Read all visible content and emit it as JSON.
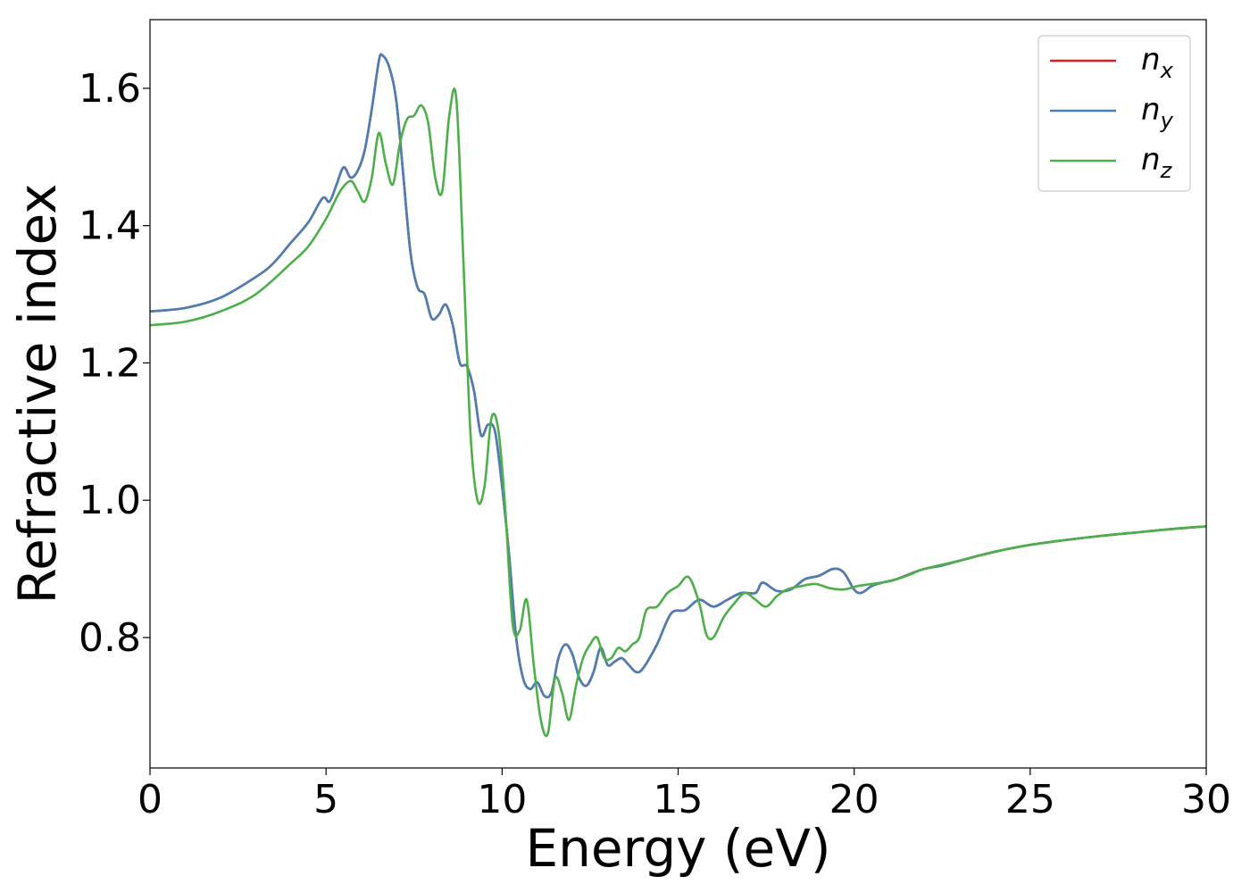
{
  "chart_data": {
    "type": "line",
    "title": "",
    "xlabel": "Energy (eV)",
    "ylabel": "Refractive index",
    "xlim": [
      0,
      30
    ],
    "ylim": [
      0.61,
      1.7
    ],
    "xticks": [
      0,
      5,
      10,
      15,
      20,
      25,
      30
    ],
    "yticks": [
      0.8,
      1.0,
      1.2,
      1.4,
      1.6
    ],
    "xtick_labels": [
      "0",
      "5",
      "10",
      "15",
      "20",
      "25",
      "30"
    ],
    "ytick_labels": [
      "0.8",
      "1.0",
      "1.2",
      "1.4",
      "1.6"
    ],
    "grid": false,
    "legend_position": "top-right",
    "series": [
      {
        "name": "n_x",
        "legend_main": "n",
        "legend_sub": "x",
        "color": "#e41a1c",
        "x": [
          0,
          1,
          2,
          3,
          3.5,
          4,
          4.5,
          4.9,
          5.1,
          5.3,
          5.5,
          5.7,
          5.9,
          6.1,
          6.3,
          6.5,
          6.6,
          6.8,
          7.0,
          7.2,
          7.4,
          7.6,
          7.8,
          8.0,
          8.2,
          8.4,
          8.6,
          8.8,
          9.0,
          9.2,
          9.4,
          9.6,
          9.8,
          10.0,
          10.2,
          10.4,
          10.6,
          10.8,
          11.0,
          11.2,
          11.4,
          11.6,
          11.8,
          12.0,
          12.2,
          12.4,
          12.6,
          12.8,
          13.0,
          13.2,
          13.4,
          13.6,
          13.8,
          14.0,
          14.4,
          14.8,
          15.2,
          15.6,
          16.0,
          16.4,
          16.8,
          17.2,
          17.4,
          17.8,
          18.2,
          18.6,
          19.0,
          19.4,
          19.7,
          20.0,
          20.2,
          20.5,
          20.8,
          21.2,
          21.6,
          22.0,
          22.5,
          23,
          24,
          25,
          26,
          27,
          28,
          29,
          30
        ],
        "y": [
          1.275,
          1.28,
          1.295,
          1.325,
          1.345,
          1.375,
          1.405,
          1.44,
          1.435,
          1.46,
          1.485,
          1.47,
          1.48,
          1.51,
          1.57,
          1.64,
          1.648,
          1.63,
          1.58,
          1.47,
          1.36,
          1.31,
          1.3,
          1.265,
          1.27,
          1.285,
          1.255,
          1.2,
          1.195,
          1.16,
          1.095,
          1.11,
          1.1,
          1.02,
          0.92,
          0.8,
          0.74,
          0.725,
          0.735,
          0.715,
          0.72,
          0.77,
          0.79,
          0.775,
          0.74,
          0.73,
          0.75,
          0.785,
          0.76,
          0.765,
          0.77,
          0.76,
          0.75,
          0.755,
          0.79,
          0.835,
          0.84,
          0.855,
          0.845,
          0.855,
          0.865,
          0.865,
          0.88,
          0.868,
          0.87,
          0.885,
          0.89,
          0.9,
          0.895,
          0.87,
          0.865,
          0.875,
          0.88,
          0.885,
          0.893,
          0.9,
          0.905,
          0.912,
          0.925,
          0.935,
          0.942,
          0.948,
          0.953,
          0.958,
          0.962
        ]
      },
      {
        "name": "n_y",
        "legend_main": "n",
        "legend_sub": "y",
        "color": "#4a7fb5",
        "x": [
          0,
          1,
          2,
          3,
          3.5,
          4,
          4.5,
          4.9,
          5.1,
          5.3,
          5.5,
          5.7,
          5.9,
          6.1,
          6.3,
          6.5,
          6.6,
          6.8,
          7.0,
          7.2,
          7.4,
          7.6,
          7.8,
          8.0,
          8.2,
          8.4,
          8.6,
          8.8,
          9.0,
          9.2,
          9.4,
          9.6,
          9.8,
          10.0,
          10.2,
          10.4,
          10.6,
          10.8,
          11.0,
          11.2,
          11.4,
          11.6,
          11.8,
          12.0,
          12.2,
          12.4,
          12.6,
          12.8,
          13.0,
          13.2,
          13.4,
          13.6,
          13.8,
          14.0,
          14.4,
          14.8,
          15.2,
          15.6,
          16.0,
          16.4,
          16.8,
          17.2,
          17.4,
          17.8,
          18.2,
          18.6,
          19.0,
          19.4,
          19.7,
          20.0,
          20.2,
          20.5,
          20.8,
          21.2,
          21.6,
          22.0,
          22.5,
          23,
          24,
          25,
          26,
          27,
          28,
          29,
          30
        ],
        "y": [
          1.275,
          1.28,
          1.295,
          1.325,
          1.345,
          1.375,
          1.405,
          1.44,
          1.435,
          1.46,
          1.485,
          1.47,
          1.48,
          1.51,
          1.57,
          1.64,
          1.648,
          1.63,
          1.58,
          1.47,
          1.36,
          1.31,
          1.3,
          1.265,
          1.27,
          1.285,
          1.255,
          1.2,
          1.195,
          1.16,
          1.095,
          1.11,
          1.1,
          1.02,
          0.92,
          0.8,
          0.74,
          0.725,
          0.735,
          0.715,
          0.72,
          0.77,
          0.79,
          0.775,
          0.74,
          0.73,
          0.75,
          0.785,
          0.76,
          0.765,
          0.77,
          0.76,
          0.75,
          0.755,
          0.79,
          0.835,
          0.84,
          0.855,
          0.845,
          0.855,
          0.865,
          0.865,
          0.88,
          0.868,
          0.87,
          0.885,
          0.89,
          0.9,
          0.895,
          0.87,
          0.865,
          0.875,
          0.88,
          0.885,
          0.893,
          0.9,
          0.905,
          0.912,
          0.925,
          0.935,
          0.942,
          0.948,
          0.953,
          0.958,
          0.962
        ]
      },
      {
        "name": "n_z",
        "legend_main": "n",
        "legend_sub": "z",
        "color": "#4daf4a",
        "x": [
          0,
          1,
          2,
          3,
          4,
          4.5,
          5.0,
          5.4,
          5.7,
          5.9,
          6.1,
          6.3,
          6.5,
          6.7,
          6.9,
          7.1,
          7.3,
          7.5,
          7.7,
          7.9,
          8.1,
          8.3,
          8.5,
          8.7,
          8.9,
          9.1,
          9.3,
          9.5,
          9.7,
          9.9,
          10.1,
          10.3,
          10.5,
          10.7,
          10.9,
          11.1,
          11.3,
          11.5,
          11.7,
          11.9,
          12.1,
          12.3,
          12.5,
          12.7,
          12.9,
          13.1,
          13.3,
          13.5,
          13.7,
          13.9,
          14.1,
          14.4,
          14.7,
          15.0,
          15.3,
          15.6,
          15.8,
          16.0,
          16.3,
          16.6,
          16.9,
          17.2,
          17.5,
          17.8,
          18.1,
          18.5,
          18.9,
          19.3,
          19.7,
          20.1,
          20.5,
          21.0,
          21.5,
          22,
          23,
          24,
          25,
          26,
          27,
          28,
          29,
          30
        ],
        "y": [
          1.255,
          1.26,
          1.275,
          1.3,
          1.345,
          1.37,
          1.41,
          1.45,
          1.465,
          1.45,
          1.435,
          1.47,
          1.535,
          1.49,
          1.46,
          1.52,
          1.555,
          1.56,
          1.575,
          1.55,
          1.47,
          1.45,
          1.56,
          1.585,
          1.35,
          1.1,
          1.0,
          1.02,
          1.12,
          1.1,
          0.98,
          0.82,
          0.81,
          0.855,
          0.76,
          0.68,
          0.66,
          0.74,
          0.72,
          0.68,
          0.73,
          0.77,
          0.79,
          0.8,
          0.77,
          0.77,
          0.785,
          0.78,
          0.79,
          0.8,
          0.84,
          0.845,
          0.865,
          0.875,
          0.888,
          0.85,
          0.805,
          0.8,
          0.83,
          0.85,
          0.865,
          0.855,
          0.845,
          0.86,
          0.87,
          0.875,
          0.878,
          0.872,
          0.87,
          0.875,
          0.878,
          0.882,
          0.89,
          0.9,
          0.912,
          0.925,
          0.935,
          0.942,
          0.948,
          0.953,
          0.958,
          0.962
        ]
      }
    ]
  }
}
